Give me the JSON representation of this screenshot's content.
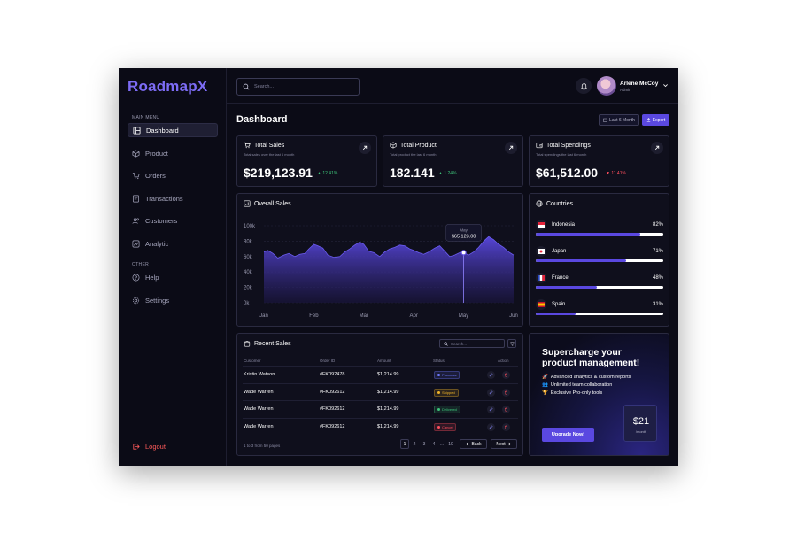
{
  "app": {
    "logo": "RoadmapX"
  },
  "sidebar": {
    "main_menu_label": "MAIN MENU",
    "other_label": "OTHER",
    "items": [
      {
        "label": "Dashboard",
        "icon": "dashboard-icon",
        "active": true
      },
      {
        "label": "Product",
        "icon": "box-icon"
      },
      {
        "label": "Orders",
        "icon": "cart-icon"
      },
      {
        "label": "Transactions",
        "icon": "receipt-icon"
      },
      {
        "label": "Customers",
        "icon": "users-icon"
      },
      {
        "label": "Analytic",
        "icon": "chart-icon"
      }
    ],
    "other_items": [
      {
        "label": "Help",
        "icon": "help-icon"
      },
      {
        "label": "Settings",
        "icon": "gear-icon"
      }
    ],
    "logout_label": "Logout"
  },
  "topbar": {
    "search_placeholder": "Search...",
    "user": {
      "name": "Arlene McCoy",
      "role": "Admin"
    }
  },
  "page": {
    "title": "Dashboard",
    "range_label": "Last 6 Month",
    "export_label": "Export"
  },
  "stats": [
    {
      "title": "Total Sales",
      "subtitle": "Total sales over the last 6 month",
      "value": "$219,123.91",
      "change": "12.41%",
      "trend": "up"
    },
    {
      "title": "Total Product",
      "subtitle": "Total product the last 6 month",
      "value": "182.141",
      "change": "1.24%",
      "trend": "up"
    },
    {
      "title": "Total Spendings",
      "subtitle": "Total spendings the last 6 month",
      "value": "$61,512.00",
      "change": "11.41%",
      "trend": "down"
    }
  ],
  "overall_sales": {
    "title": "Overall Sales",
    "tooltip": {
      "label": "May",
      "value": "$65,123.00"
    }
  },
  "chart_data": {
    "type": "area",
    "title": "Overall Sales",
    "categories": [
      "Jan",
      "Feb",
      "Mar",
      "Apr",
      "May",
      "Jun"
    ],
    "ylim": [
      0,
      100000
    ],
    "yticks": [
      "0k",
      "20k",
      "40k",
      "60k",
      "80k",
      "100k"
    ],
    "x": [
      0,
      0.08,
      0.18,
      0.28,
      0.4,
      0.5,
      0.62,
      0.72,
      0.82,
      0.9,
      1,
      1.08,
      1.18,
      1.28,
      1.4,
      1.52,
      1.62,
      1.72,
      1.82,
      1.92,
      2,
      2.1,
      2.2,
      2.32,
      2.42,
      2.52,
      2.62,
      2.72,
      2.82,
      2.92,
      3,
      3.1,
      3.2,
      3.3,
      3.42,
      3.52,
      3.62,
      3.72,
      3.82,
      3.92,
      4,
      4.1,
      4.2,
      4.3,
      4.4,
      4.5,
      4.6,
      4.7,
      4.8,
      4.9,
      5
    ],
    "values": [
      66000,
      68000,
      64000,
      58000,
      62000,
      64000,
      60000,
      63000,
      64000,
      70000,
      76000,
      74000,
      71000,
      62000,
      59000,
      60000,
      66000,
      70000,
      75000,
      79000,
      76000,
      67000,
      65000,
      60000,
      66000,
      70000,
      72000,
      75000,
      74000,
      70000,
      68000,
      65000,
      63000,
      66000,
      71000,
      74000,
      67000,
      60000,
      62000,
      65000,
      65000,
      62000,
      66000,
      72000,
      80000,
      86000,
      82000,
      76000,
      72000,
      66000,
      62000
    ],
    "grid": true
  },
  "countries": {
    "title": "Countries",
    "items": [
      {
        "name": "Indonesia",
        "pct_label": "82%",
        "value": 0.82,
        "flag": "flag-indonesia-icon"
      },
      {
        "name": "Japan",
        "pct_label": "71%",
        "value": 0.71,
        "flag": "flag-japan-icon"
      },
      {
        "name": "France",
        "pct_label": "48%",
        "value": 0.48,
        "flag": "flag-france-icon"
      },
      {
        "name": "Spain",
        "pct_label": "31%",
        "value": 0.31,
        "flag": "flag-spain-icon"
      }
    ]
  },
  "recent_sales": {
    "title": "Recent Sales",
    "search_placeholder": "Search...",
    "headers": [
      "Customer",
      "Order ID",
      "Amount",
      "Status",
      "Action"
    ],
    "rows": [
      {
        "customer": "Kristin Watson",
        "order_id": "#FK092478",
        "amount": "$1,214.99",
        "status": "Proccess",
        "status_color": "#6f7bff"
      },
      {
        "customer": "Wade Warren",
        "order_id": "#FK092612",
        "amount": "$1,214.99",
        "status": "Shipped",
        "status_color": "#f0b429"
      },
      {
        "customer": "Wade Warren",
        "order_id": "#FK092612",
        "amount": "$1,214.99",
        "status": "Delivered",
        "status_color": "#3ec47a"
      },
      {
        "customer": "Wade Warren",
        "order_id": "#FK092612",
        "amount": "$1,214.99",
        "status": "Cancel",
        "status_color": "#ff4f5e"
      }
    ],
    "pager_info": "1 to 3 from 50 pages",
    "pages": [
      "1",
      "2",
      "3",
      "4",
      "...",
      "10"
    ],
    "back_label": "Back",
    "next_label": "Next"
  },
  "promo": {
    "title": "Supercharge your product management!",
    "features": [
      {
        "emoji": "🚀",
        "text": "Advanced analytics & custom reports"
      },
      {
        "emoji": "👥",
        "text": "Unlimited team collaboration"
      },
      {
        "emoji": "🏆",
        "text": "Exclusive Pro-only tools"
      }
    ],
    "cta_label": "Upgrade Now!",
    "price": "$21",
    "per": "/month"
  }
}
